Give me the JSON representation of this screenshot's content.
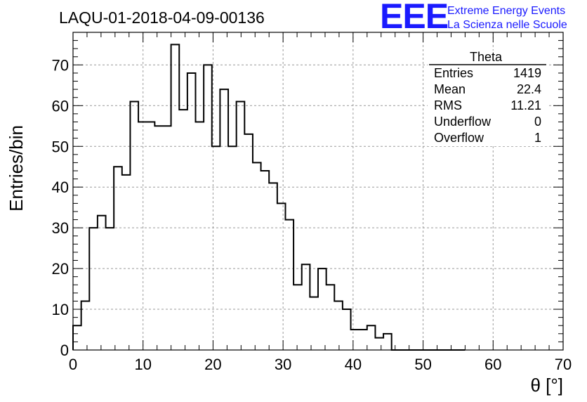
{
  "title": "LAQU-01-2018-04-09-00136",
  "logo": {
    "mark": "EEE",
    "line1": "Extreme Energy Events",
    "line2": "La Scienza nelle Scuole",
    "color": "#1a1aff"
  },
  "stats_box": {
    "name": "Theta",
    "rows": [
      {
        "label": "Entries",
        "value": "1419"
      },
      {
        "label": "Mean",
        "value": "22.4"
      },
      {
        "label": "RMS",
        "value": "11.21"
      },
      {
        "label": "Underflow",
        "value": "0"
      },
      {
        "label": "Overflow",
        "value": "1"
      }
    ]
  },
  "chart_data": {
    "type": "histogram",
    "xlabel": "θ [°]",
    "ylabel": "Entries/bin",
    "xlim": [
      0,
      70
    ],
    "ylim": [
      0,
      78
    ],
    "grid": true,
    "bin_width": 1.1667,
    "x_ticks": [
      0,
      10,
      20,
      30,
      40,
      50,
      60,
      70
    ],
    "y_ticks": [
      0,
      10,
      20,
      30,
      40,
      50,
      60,
      70
    ],
    "bin_low_edges": [
      0,
      1.17,
      2.33,
      3.5,
      4.67,
      5.83,
      7,
      8.17,
      9.33,
      10.5,
      11.67,
      12.83,
      14,
      15.17,
      16.33,
      17.5,
      18.67,
      19.83,
      21,
      22.17,
      23.33,
      24.5,
      25.67,
      26.83,
      28,
      29.17,
      30.33,
      31.5,
      32.67,
      33.83,
      35,
      36.17,
      37.33,
      38.5,
      39.67,
      40.83,
      42,
      43.17,
      44.33,
      45.5,
      46.67,
      47.83,
      49,
      50.17,
      51.33,
      52.5,
      53.67,
      54.83
    ],
    "values": [
      6,
      12,
      30,
      33,
      30,
      45,
      43,
      61,
      56,
      56,
      55,
      55,
      75,
      59,
      68,
      56,
      70,
      50,
      64,
      50,
      61,
      53,
      46,
      44,
      41,
      36,
      32,
      16,
      21,
      13,
      20,
      16,
      12,
      10,
      5,
      5,
      6,
      3,
      4,
      0,
      0,
      0,
      0,
      0,
      0,
      0,
      0,
      0
    ],
    "color": "#000000"
  }
}
